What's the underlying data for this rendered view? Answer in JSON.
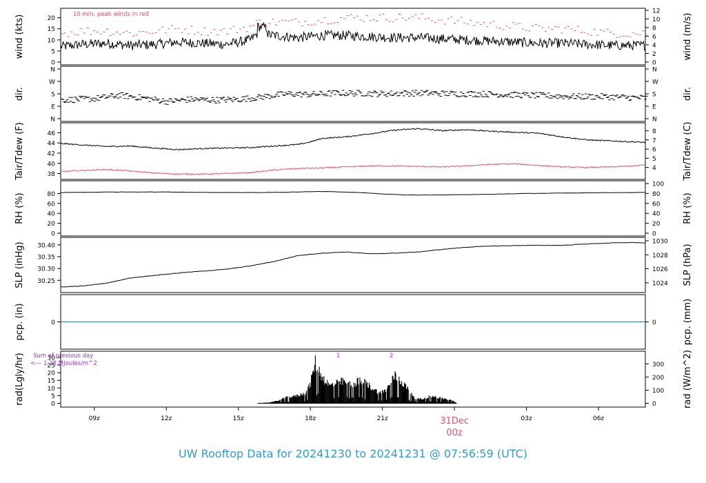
{
  "colors": {
    "frame": "#000000",
    "series": "#000000",
    "dew": "#df536b",
    "peak": "#df536b",
    "pcp": "#2f6fc7",
    "note": "#9a32cd",
    "caption": "#2e9ad8",
    "date": "#df536b"
  },
  "caption": "UW Rooftop Data for 20241230  to  20241231 @ 07:56:59  (UTC)",
  "chart_data": {
    "type": "line",
    "x": {
      "unit": "hours UTC from 2024-12-30 00z",
      "range": [
        7.6,
        31.95
      ],
      "ticks": [
        {
          "t": 9,
          "label": "09z"
        },
        {
          "t": 12,
          "label": "12z"
        },
        {
          "t": 15,
          "label": "15z"
        },
        {
          "t": 18,
          "label": "18z"
        },
        {
          "t": 21,
          "label": "21z"
        },
        {
          "t": 24,
          "label": "00z",
          "date": "31Dec"
        },
        {
          "t": 27,
          "label": "03z"
        },
        {
          "t": 30,
          "label": "06z"
        }
      ]
    },
    "panels": [
      {
        "id": "wind",
        "left_label": "wind (kts)",
        "right_label": "wind (m/s)",
        "ylim": [
          0,
          23
        ],
        "left_ticks": [
          "0",
          "5",
          "10",
          "15",
          "20"
        ],
        "right_ylim": [
          0,
          11.83
        ],
        "right_ticks": [
          "0",
          "2",
          "4",
          "6",
          "8",
          "10",
          "12"
        ],
        "annotation": "10 min. peak winds in red",
        "series": [
          {
            "kind": "line",
            "color": "#000000",
            "x": [
              7.6,
              8.5,
              9.5,
              10.5,
              11.5,
              12.5,
              13.5,
              14.5,
              15.5,
              15.8,
              16.5,
              17.5,
              18.5,
              19.5,
              20.5,
              21.5,
              22.5,
              23.5,
              24.5,
              25.5,
              26.5,
              27.5,
              28.5,
              29.5,
              30.5,
              31.5,
              31.95
            ],
            "y": [
              7,
              8,
              8.5,
              7.5,
              8,
              9,
              8.5,
              8,
              10,
              13,
              12,
              11,
              12,
              12,
              11.5,
              11,
              11,
              10.5,
              10,
              9.5,
              9,
              8.5,
              8.5,
              8,
              7.5,
              7.5,
              7.5
            ]
          },
          {
            "kind": "peaks",
            "color": "#df536b",
            "x": [
              7.6,
              8.5,
              9.5,
              10.5,
              11.5,
              12.5,
              13.5,
              14.5,
              15.5,
              15.8,
              16.5,
              17.5,
              18.5,
              19.5,
              20.5,
              21.5,
              22.5,
              23.5,
              24.5,
              25.5,
              26.5,
              27.5,
              28.5,
              29.5,
              30.5,
              31.5,
              31.95
            ],
            "y": [
              13,
              14,
              14,
              13,
              14,
              15,
              14,
              14,
              16,
              18,
              18,
              18,
              19,
              20,
              20,
              20,
              20,
              19,
              18,
              17,
              16,
              15,
              15,
              14,
              13,
              13,
              13
            ]
          }
        ]
      },
      {
        "id": "dir",
        "left_label": "dir.",
        "right_label": "dir.",
        "ylim": [
          0,
          360
        ],
        "left_ticks": [
          "N",
          "E",
          "S",
          "W",
          "N"
        ],
        "right_ticks": [
          "N",
          "E",
          "S",
          "W",
          "N"
        ],
        "series": [
          {
            "kind": "dash",
            "color": "#000000",
            "x": [
              7.6,
              9,
              10,
              11,
              12,
              13,
              14,
              15,
              15.8,
              17,
              18,
              19,
              20,
              21,
              22,
              23,
              24,
              25,
              26,
              27,
              28,
              29,
              30,
              31,
              31.95
            ],
            "y": [
              135,
              145,
              170,
              150,
              125,
              140,
              135,
              140,
              155,
              180,
              175,
              185,
              185,
              180,
              185,
              185,
              180,
              180,
              175,
              170,
              165,
              160,
              160,
              155,
              150
            ]
          }
        ]
      },
      {
        "id": "temp",
        "left_label": "Tair/Tdew (F)",
        "right_label": "Tair/Tdew (C)",
        "ylim": [
          37.4,
          47.4
        ],
        "left_ticks": [
          "38",
          "40",
          "42",
          "44",
          "46"
        ],
        "right_ylim": [
          3,
          8.56
        ],
        "right_ticks": [
          "4",
          "5",
          "6",
          "7",
          "8"
        ],
        "series": [
          {
            "name": "Tair",
            "kind": "line",
            "color": "#000000",
            "x": [
              7.6,
              8.5,
              9.5,
              10.5,
              11.5,
              12.5,
              13.5,
              14.5,
              15.5,
              16.5,
              17.5,
              18,
              18.5,
              19.5,
              20.5,
              21.5,
              22.5,
              23.5,
              24.5,
              25.5,
              26.5,
              27.5,
              28.5,
              29.5,
              30.5,
              31.5,
              31.95
            ],
            "y": [
              43.9,
              43.6,
              43.3,
              43.4,
              43.0,
              42.7,
              42.9,
              43.0,
              43.1,
              43.4,
              43.7,
              44.2,
              44.9,
              45.2,
              45.8,
              46.5,
              46.8,
              46.4,
              46.6,
              46.3,
              46.1,
              45.9,
              45.2,
              44.6,
              44.4,
              44.2,
              44.1
            ]
          },
          {
            "name": "Tdew",
            "kind": "line",
            "color": "#df536b",
            "x": [
              7.6,
              8.5,
              9.5,
              10.5,
              11.5,
              12.5,
              13.5,
              14.5,
              15.5,
              16.5,
              17.5,
              18.5,
              19.5,
              20.5,
              21.5,
              22.5,
              23.5,
              24.5,
              25.5,
              26.5,
              27.5,
              28.5,
              29.5,
              30.5,
              31.5,
              31.95
            ],
            "y": [
              38.4,
              38.6,
              38.8,
              38.5,
              38.1,
              37.9,
              37.9,
              38.0,
              38.2,
              38.7,
              39.0,
              39.1,
              39.3,
              39.5,
              39.5,
              39.4,
              39.3,
              39.5,
              39.8,
              39.9,
              39.6,
              39.3,
              39.2,
              39.3,
              39.5,
              39.7
            ]
          }
        ]
      },
      {
        "id": "rh",
        "left_label": "RH (%)",
        "right_label": "RH (%)",
        "ylim": [
          0,
          100
        ],
        "left_ticks": [
          "0",
          "20",
          "40",
          "60",
          "80"
        ],
        "right_ticks": [
          "0",
          "20",
          "40",
          "60",
          "80",
          "100"
        ],
        "series": [
          {
            "kind": "line",
            "color": "#000000",
            "x": [
              7.6,
              10,
              12,
              14,
              16,
              17.5,
              18.5,
              20,
              21,
              22,
              23,
              25,
              27,
              29,
              31,
              31.95
            ],
            "y": [
              82,
              83,
              83,
              82,
              82,
              83,
              84,
              82,
              79,
              77,
              77,
              78,
              80,
              81,
              82,
              82
            ]
          }
        ]
      },
      {
        "id": "slp",
        "left_label": "SLP (inHg)",
        "right_label": "SLP (hPa)",
        "ylim": [
          30.21,
          30.42
        ],
        "left_ticks": [
          "30.25",
          "30.30",
          "30.35",
          "30.40"
        ],
        "right_ylim": [
          1022.99,
          1030.1
        ],
        "right_ticks": [
          "1024",
          "1026",
          "1028",
          "1030"
        ],
        "series": [
          {
            "kind": "line",
            "color": "#000000",
            "x": [
              7.6,
              8.5,
              9.5,
              10.5,
              11.5,
              12.5,
              13.5,
              14.5,
              15.5,
              16.5,
              17.5,
              18.5,
              19.5,
              20.5,
              21.5,
              22.5,
              23.5,
              24.5,
              25.5,
              26.5,
              27.5,
              28.5,
              29.5,
              30.5,
              31.5,
              31.95
            ],
            "y": [
              30.222,
              30.226,
              30.238,
              30.26,
              30.271,
              30.281,
              30.289,
              30.297,
              30.311,
              30.33,
              30.355,
              30.365,
              30.37,
              30.362,
              30.365,
              30.37,
              30.381,
              30.39,
              30.395,
              30.397,
              30.398,
              30.398,
              30.404,
              30.408,
              30.41,
              30.408
            ]
          }
        ]
      },
      {
        "id": "pcp",
        "left_label": "pcp. (in)",
        "right_label": "pcp. (mm)",
        "ylim": [
          -1,
          1
        ],
        "left_ticks": [
          "0"
        ],
        "right_ticks": [
          "0"
        ],
        "series": [
          {
            "kind": "line",
            "color": "#2f6fc7",
            "x": [
              7.6,
              31.95
            ],
            "y": [
              0,
              0
            ]
          }
        ]
      },
      {
        "id": "rad",
        "left_label": "rad(Lgly/hr)",
        "right_label": "rad (W/m^2)",
        "ylim": [
          -0.7,
          30
        ],
        "left_ticks": [
          "0",
          "5",
          "10",
          "15",
          "20",
          "25",
          "30"
        ],
        "right_ylim": [
          -8.1,
          348.9
        ],
        "right_ticks": [
          "0",
          "100",
          "200",
          "300"
        ],
        "notes": [
          "Sum of previous day",
          "<--- 1.28 MJoules/m^2",
          "1",
          "2"
        ],
        "series": [
          {
            "kind": "bars",
            "color": "#000000",
            "x": [
              15.8,
              16.2,
              16.6,
              17.0,
              17.4,
              17.8,
              18.0,
              18.2,
              18.5,
              18.8,
              19.1,
              19.4,
              19.7,
              20.0,
              20.3,
              20.6,
              20.9,
              21.2,
              21.5,
              21.8,
              22.1,
              22.4,
              22.7,
              23.0,
              23.3,
              23.6,
              23.9,
              24.1
            ],
            "y": [
              0,
              0.5,
              1.5,
              4,
              5,
              7,
              13,
              28,
              18,
              12,
              14,
              15,
              13,
              15,
              14,
              10,
              7,
              10,
              19,
              15,
              9,
              3,
              3,
              5,
              4,
              3,
              2,
              0
            ]
          }
        ]
      }
    ]
  }
}
